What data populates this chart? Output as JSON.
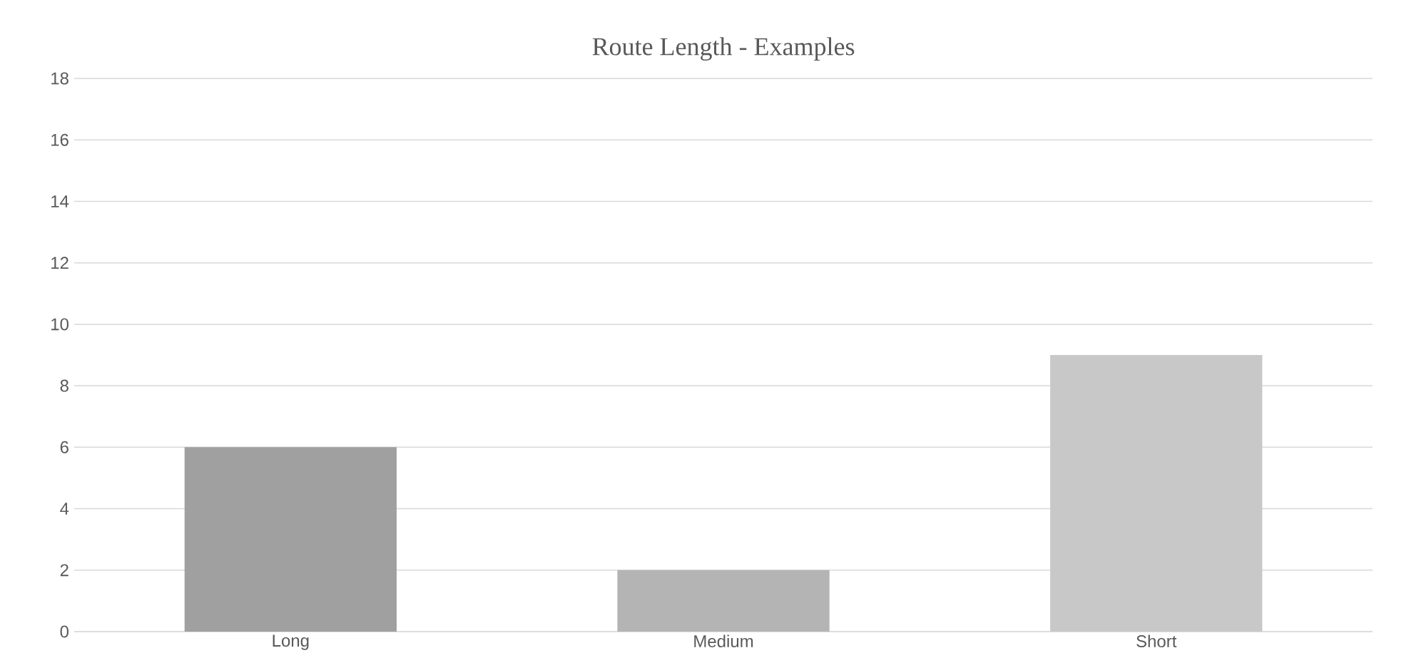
{
  "chart_data": {
    "type": "bar",
    "title": "Route Length - Examples",
    "categories": [
      "Long",
      "Medium",
      "Short"
    ],
    "values": [
      6,
      2,
      9
    ],
    "colors": [
      "#a0a0a0",
      "#b4b4b4",
      "#c8c8c8"
    ],
    "ylim": [
      0,
      18
    ],
    "yticks": [
      0,
      2,
      4,
      6,
      8,
      10,
      12,
      14,
      16,
      18
    ],
    "grid": "y"
  }
}
